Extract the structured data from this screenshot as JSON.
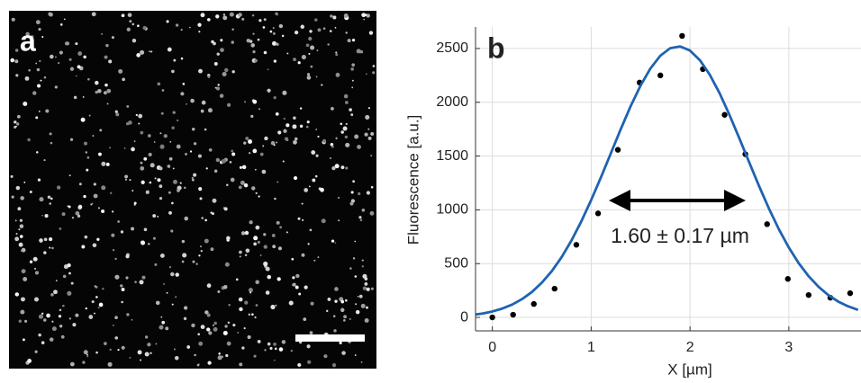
{
  "image_panel": {
    "label": "a"
  },
  "chart_data": {
    "type": "scatter",
    "panel_label": "b",
    "xlabel": "X [µm]",
    "ylabel": "Fluorescence [a.u.]",
    "annotation": "1.60 ± 0.17 µm",
    "xlim": [
      -0.17,
      3.73
    ],
    "ylim": [
      -125,
      2700
    ],
    "xticks": [
      0,
      1,
      2,
      3
    ],
    "yticks": [
      0,
      500,
      1000,
      1500,
      2000,
      2500
    ],
    "grid": true,
    "series": [
      {
        "mode": "markers",
        "color": "#000000",
        "x": [
          0,
          0.21,
          0.42,
          0.63,
          0.85,
          1.07,
          1.27,
          1.49,
          1.7,
          1.92,
          2.13,
          2.35,
          2.56,
          2.78,
          2.99,
          3.2,
          3.42,
          3.62
        ],
        "values": [
          0,
          25,
          125,
          267,
          675,
          967,
          1558,
          2183,
          2250,
          2617,
          2308,
          1883,
          1517,
          867,
          358,
          208,
          183,
          225
        ]
      },
      {
        "mode": "line",
        "color": "#1f63b0",
        "x": [
          -0.2,
          -0.1,
          0,
          0.1,
          0.2,
          0.3,
          0.4,
          0.5,
          0.6,
          0.7,
          0.8,
          0.9,
          1,
          1.1,
          1.2,
          1.3,
          1.4,
          1.5,
          1.6,
          1.7,
          1.8,
          1.9,
          2,
          2.1,
          2.2,
          2.3,
          2.4,
          2.5,
          2.6,
          2.7,
          2.8,
          2.9,
          3,
          3.1,
          3.2,
          3.3,
          3.4,
          3.5,
          3.6,
          3.7
        ],
        "values": [
          23,
          36,
          55,
          82,
          119,
          170,
          236,
          322,
          428,
          559,
          714,
          892,
          1091,
          1305,
          1528,
          1752,
          1965,
          2156,
          2315,
          2433,
          2503,
          2519,
          2481,
          2391,
          2256,
          2083,
          1881,
          1663,
          1439,
          1218,
          1009,
          818,
          649,
          504,
          383,
          285,
          207,
          147,
          103,
          70
        ]
      }
    ]
  }
}
